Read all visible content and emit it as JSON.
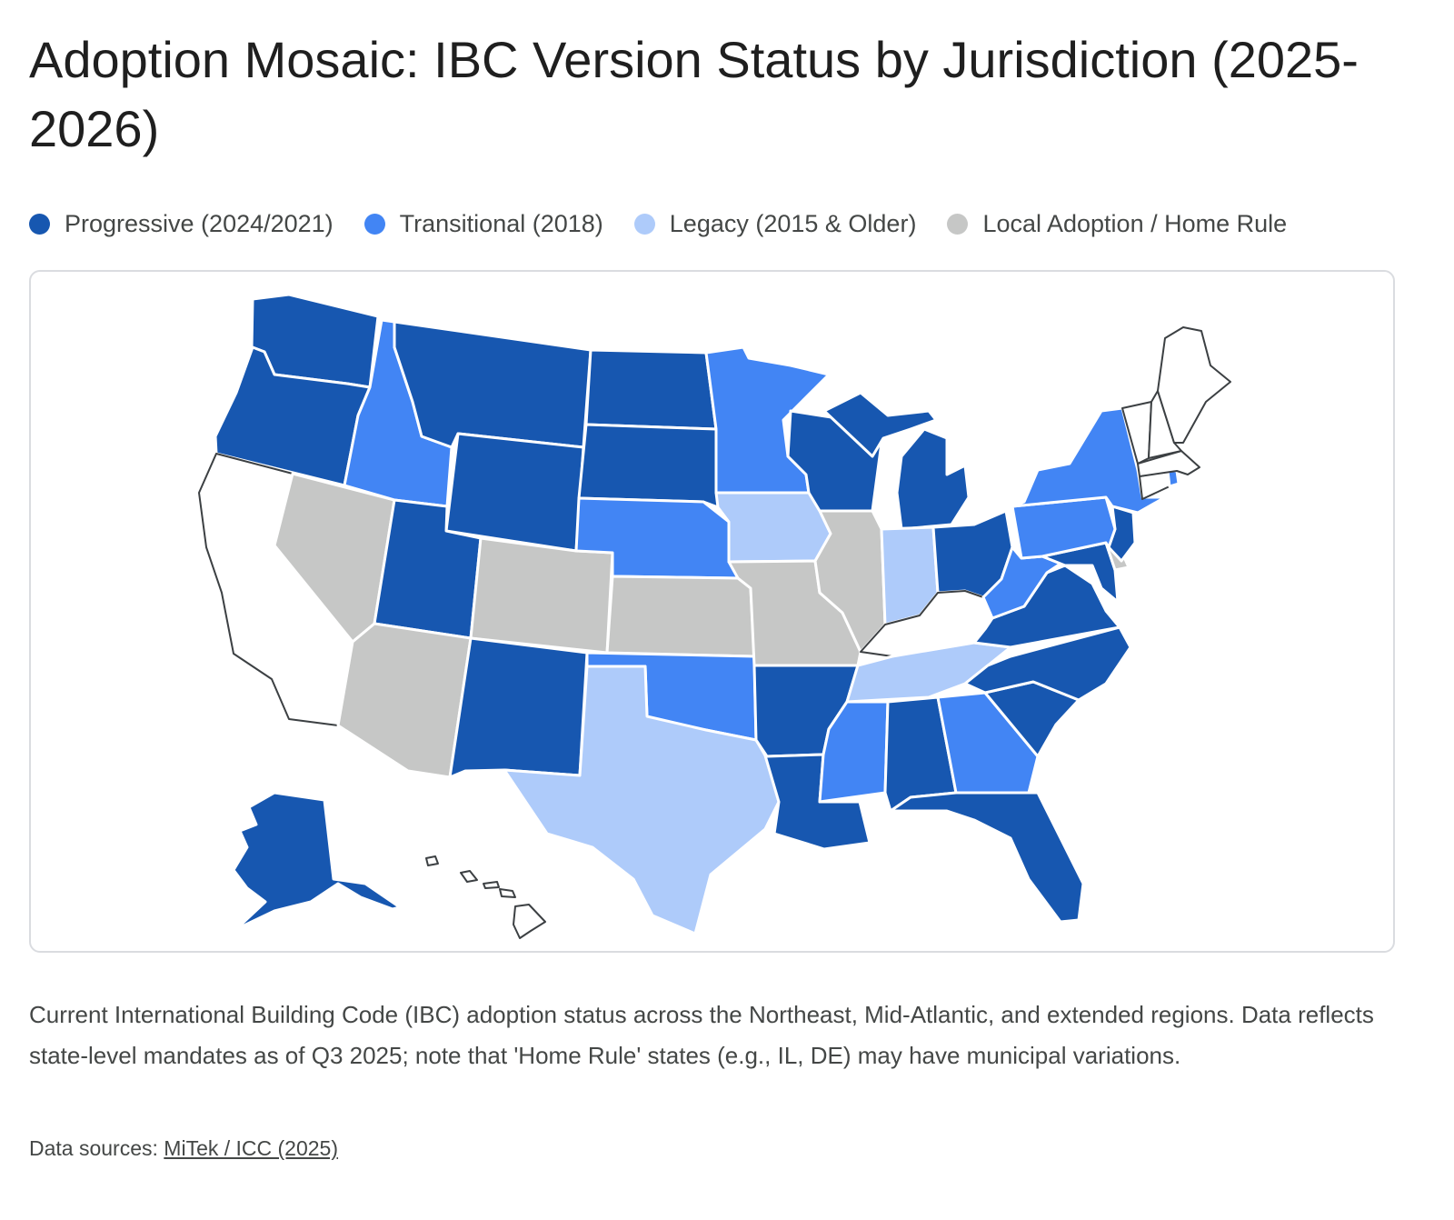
{
  "title": "Adoption Mosaic: IBC Version Status by Jurisdiction (2025-2026)",
  "legend": [
    {
      "key": "progressive",
      "label": "Progressive (2024/2021)",
      "color": "#1757b0"
    },
    {
      "key": "transitional",
      "label": "Transitional (2018)",
      "color": "#4285f4"
    },
    {
      "key": "legacy",
      "label": "Legacy (2015 & Older)",
      "color": "#aecbfa"
    },
    {
      "key": "home_rule",
      "label": "Local Adoption / Home Rule",
      "color": "#c6c7c6"
    }
  ],
  "no_data_color": "#ffffff",
  "states": {
    "WA": "progressive",
    "OR": "progressive",
    "CA": null,
    "NV": "home_rule",
    "ID": "transitional",
    "MT": "progressive",
    "WY": "progressive",
    "UT": "progressive",
    "AZ": "home_rule",
    "CO": "home_rule",
    "NM": "progressive",
    "ND": "progressive",
    "SD": "progressive",
    "NE": "transitional",
    "KS": "home_rule",
    "OK": "transitional",
    "TX": "legacy",
    "MN": "transitional",
    "IA": "legacy",
    "MO": "home_rule",
    "AR": "progressive",
    "LA": "progressive",
    "WI": "progressive",
    "IL": "home_rule",
    "MI": "progressive",
    "IN": "legacy",
    "OH": "progressive",
    "KY": null,
    "TN": "legacy",
    "MS": "transitional",
    "AL": "progressive",
    "GA": "transitional",
    "FL": "progressive",
    "SC": "progressive",
    "NC": "progressive",
    "VA": "progressive",
    "WV": "transitional",
    "MD": "progressive",
    "DE": "home_rule",
    "NJ": "progressive",
    "PA": "transitional",
    "NY": "transitional",
    "CT": null,
    "RI": "transitional",
    "MA": null,
    "VT": null,
    "NH": null,
    "ME": null,
    "AK": "progressive",
    "HI": null
  },
  "caption": "Current International Building Code (IBC) adoption status across the Northeast, Mid-Atlantic, and extended regions. Data reflects state-level mandates as of Q3 2025; note that 'Home Rule' states (e.g., IL, DE) may have municipal variations.",
  "sources": {
    "prefix": "Data sources: ",
    "link_text": "MiTek / ICC (2025)"
  }
}
